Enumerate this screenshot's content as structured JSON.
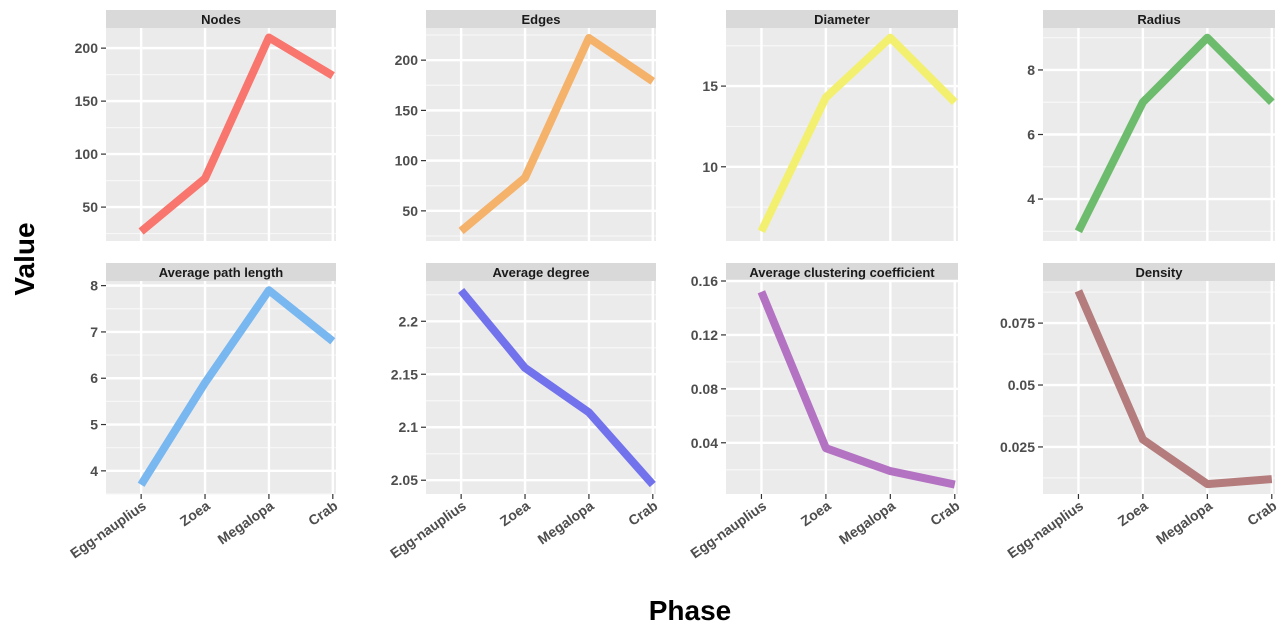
{
  "chart_data": {
    "type": "line",
    "xlabel": "Phase",
    "ylabel": "Value",
    "categories": [
      "Egg-nauplius",
      "Zoea",
      "Megalopa",
      "Crab"
    ],
    "panels": [
      {
        "title": "Nodes",
        "values": [
          27,
          77,
          210,
          174
        ],
        "yticks": [
          50,
          100,
          150,
          200
        ],
        "ylim": [
          18,
          219
        ],
        "color": "#f8766d"
      },
      {
        "title": "Edges",
        "values": [
          30,
          83,
          222,
          179
        ],
        "yticks": [
          50,
          100,
          150,
          200
        ],
        "ylim": [
          20,
          232
        ],
        "color": "#f5b26b"
      },
      {
        "title": "Diameter",
        "values": [
          6,
          14.3,
          18,
          14
        ],
        "yticks": [
          10,
          15
        ],
        "ylim": [
          5.4,
          18.6
        ],
        "color": "#f3f06f"
      },
      {
        "title": "Radius",
        "values": [
          3,
          7,
          9,
          7
        ],
        "yticks": [
          4,
          6,
          8
        ],
        "ylim": [
          2.7,
          9.3
        ],
        "color": "#6dbb6d"
      },
      {
        "title": "Average path length",
        "values": [
          3.7,
          5.9,
          7.9,
          6.8
        ],
        "yticks": [
          4,
          5,
          6,
          7,
          8
        ],
        "ylim": [
          3.5,
          8.1
        ],
        "color": "#79b7f0"
      },
      {
        "title": "Average degree",
        "values": [
          2.229,
          2.156,
          2.114,
          2.046
        ],
        "yticks": [
          2.05,
          2.1,
          2.15,
          2.2
        ],
        "ylim": [
          2.037,
          2.238
        ],
        "color": "#7272ec"
      },
      {
        "title": "Average clustering coefficient",
        "values": [
          0.152,
          0.036,
          0.019,
          0.009
        ],
        "yticks": [
          0.04,
          0.08,
          0.12,
          0.16
        ],
        "ylim": [
          0.002,
          0.16
        ],
        "color": "#b372c2"
      },
      {
        "title": "Density",
        "values": [
          0.088,
          0.028,
          0.01,
          0.012
        ],
        "yticks": [
          0.025,
          0.05,
          0.075
        ],
        "ylim": [
          0.006,
          0.092
        ],
        "color": "#b47c7c"
      }
    ]
  }
}
